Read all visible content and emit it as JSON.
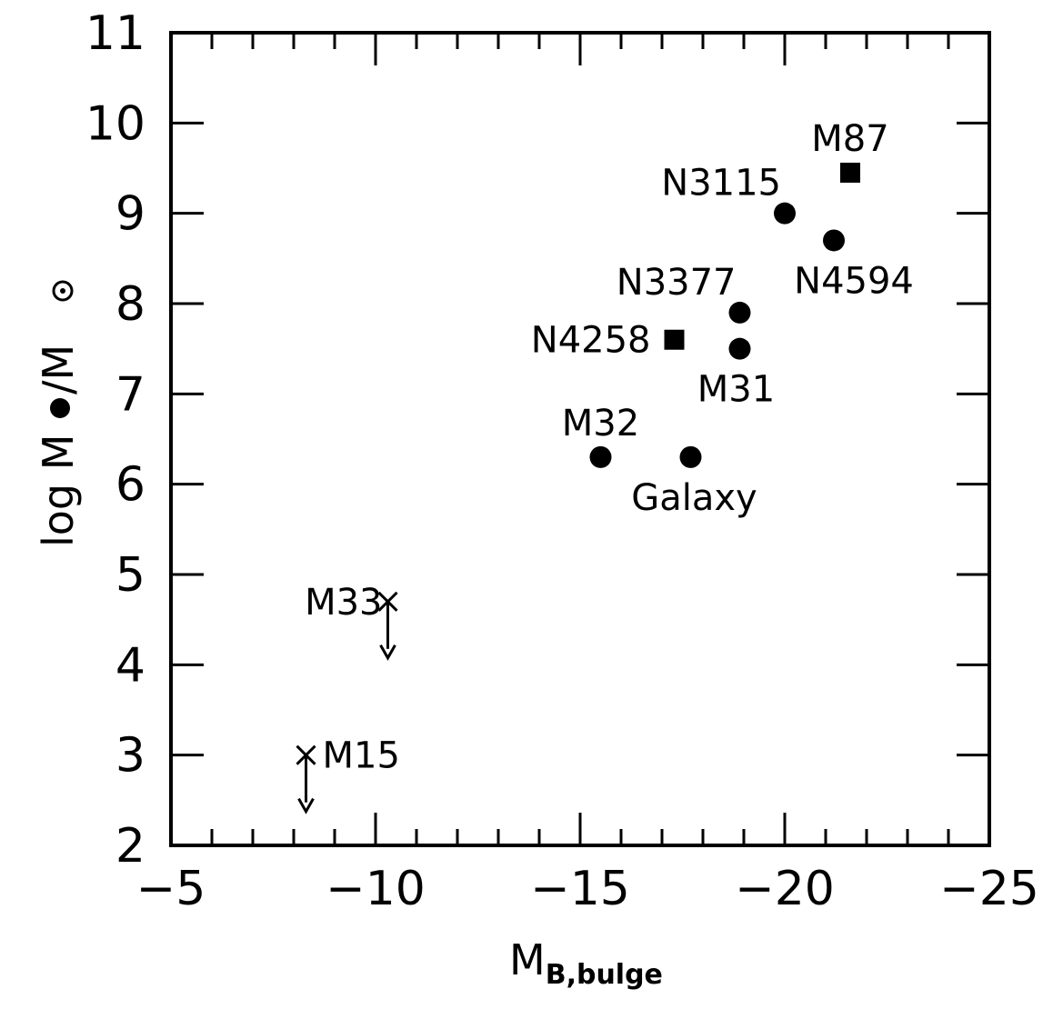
{
  "chart_data": {
    "type": "scatter",
    "title": "",
    "xlabel": {
      "main": "M",
      "sub": "B,bulge"
    },
    "ylabel": {
      "prefix": "log M",
      "mid": "/M",
      "bullet_symbol": "filled-circle",
      "sun_symbol": "circled-dot"
    },
    "xlim": [
      -5,
      -25
    ],
    "ylim": [
      2,
      11
    ],
    "x_ticks": [
      -5,
      -10,
      -15,
      -20,
      -25
    ],
    "x_tick_labels": [
      "−5",
      "−10",
      "−15",
      "−20",
      "−25"
    ],
    "y_ticks": [
      2,
      3,
      4,
      5,
      6,
      7,
      8,
      9,
      10,
      11
    ],
    "y_tick_labels": [
      "2",
      "3",
      "4",
      "5",
      "6",
      "7",
      "8",
      "9",
      "10",
      "11"
    ],
    "grid": false,
    "legend": "none",
    "points": [
      {
        "label": "M87",
        "x": -21.6,
        "y": 9.45,
        "marker": "square",
        "label_pos": "above"
      },
      {
        "label": "N3115",
        "x": -20.0,
        "y": 9.0,
        "marker": "circle",
        "label_pos": "upper-left"
      },
      {
        "label": "N4594",
        "x": -21.2,
        "y": 8.7,
        "marker": "circle",
        "label_pos": "below"
      },
      {
        "label": "N3377",
        "x": -18.9,
        "y": 7.9,
        "marker": "circle",
        "label_pos": "upper-left"
      },
      {
        "label": "N4258",
        "x": -17.3,
        "y": 7.6,
        "marker": "square",
        "label_pos": "left"
      },
      {
        "label": "M31",
        "x": -18.9,
        "y": 7.5,
        "marker": "circle",
        "label_pos": "below"
      },
      {
        "label": "M32",
        "x": -15.5,
        "y": 6.3,
        "marker": "circle",
        "label_pos": "above"
      },
      {
        "label": "Galaxy",
        "x": -17.7,
        "y": 6.3,
        "marker": "circle",
        "label_pos": "below"
      },
      {
        "label": "M33",
        "x": -10.3,
        "y": 4.7,
        "marker": "cross",
        "upper_limit": true,
        "label_pos": "left"
      },
      {
        "label": "M15",
        "x": -8.3,
        "y": 3.0,
        "marker": "cross",
        "upper_limit": true,
        "label_pos": "right"
      }
    ]
  }
}
